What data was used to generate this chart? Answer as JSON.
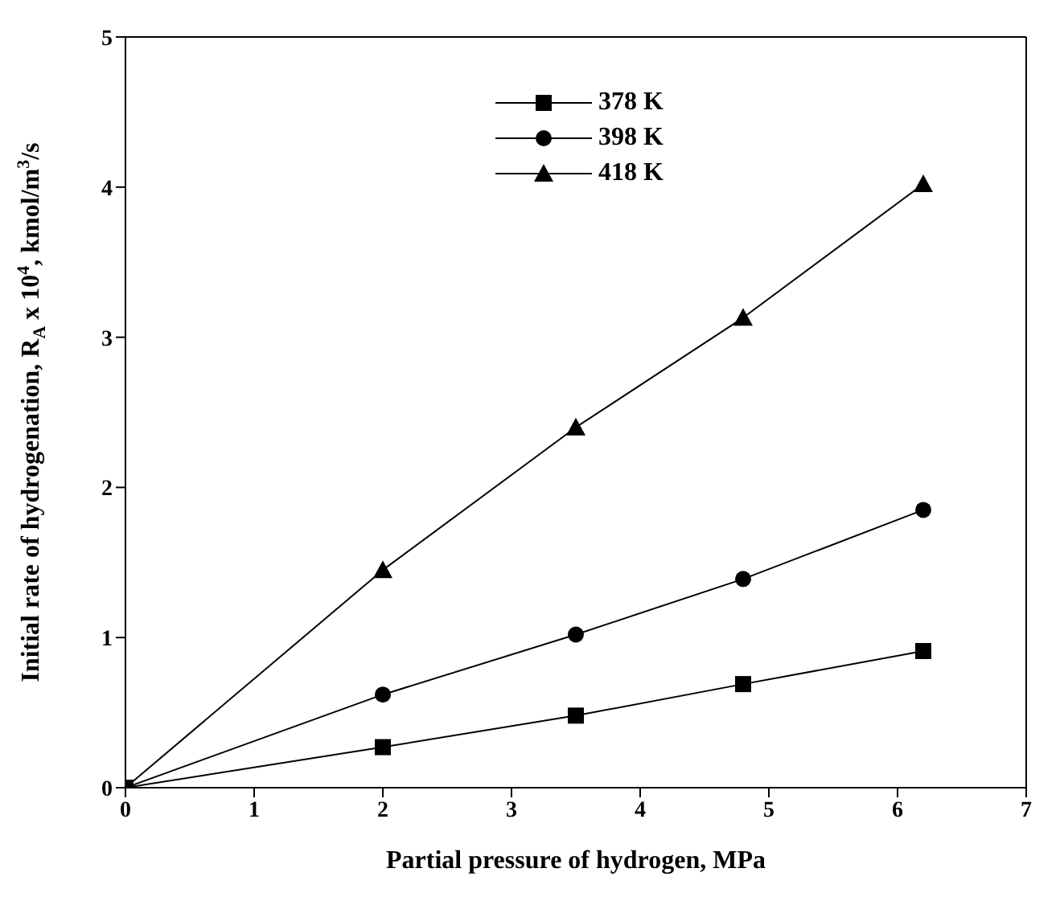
{
  "chart_data": {
    "type": "line",
    "xlabel": "Partial pressure of hydrogen, MPa",
    "ylabel": "Initial rate of hydrogenation, R$_{A}$ x 10$^{4}$, kmol/m$^{3}$/s",
    "x": [
      0,
      2,
      3.5,
      4.8,
      6.2
    ],
    "series": [
      {
        "name": "378 K",
        "color": "#000000",
        "marker": "square",
        "values": [
          0,
          0.27,
          0.48,
          0.69,
          0.91
        ]
      },
      {
        "name": "398 K",
        "color": "#000000",
        "marker": "circle",
        "values": [
          0,
          0.62,
          1.02,
          1.39,
          1.85
        ]
      },
      {
        "name": "418 K",
        "color": "#000000",
        "marker": "triangle",
        "values": [
          0,
          1.45,
          2.4,
          3.13,
          4.02
        ]
      }
    ],
    "xlim": [
      0,
      7
    ],
    "xticks": [
      0,
      1,
      2,
      3,
      4,
      5,
      6,
      7
    ],
    "ylim": [
      0,
      5
    ],
    "yticks": [
      0,
      1,
      2,
      3,
      4,
      5
    ],
    "grid": false,
    "legend": "top",
    "line_style": "solid"
  }
}
